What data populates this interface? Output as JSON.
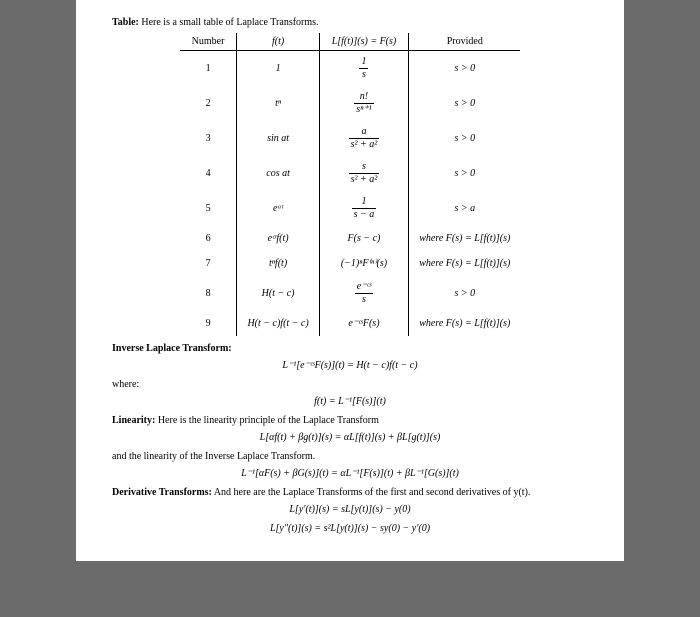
{
  "title": "Table:",
  "title_rest": " Here is a small table of Laplace Transforms.",
  "headers": {
    "num": "Number",
    "ft": "f(t)",
    "Fs": "L[f(t)](s) = F(s)",
    "prov": "Provided"
  },
  "rows": [
    {
      "n": "1",
      "ft": "1",
      "Fs_num": "1",
      "Fs_den": "s",
      "prov": "s > 0",
      "frac": true
    },
    {
      "n": "2",
      "ft": "tⁿ",
      "Fs_num": "n!",
      "Fs_den": "sⁿ⁺¹",
      "prov": "s > 0",
      "frac": true
    },
    {
      "n": "3",
      "ft": "sin at",
      "Fs_num": "a",
      "Fs_den": "s² + a²",
      "prov": "s > 0",
      "frac": true
    },
    {
      "n": "4",
      "ft": "cos at",
      "Fs_num": "s",
      "Fs_den": "s² + a²",
      "prov": "s > 0",
      "frac": true
    },
    {
      "n": "5",
      "ft": "eᵃᵗ",
      "Fs_num": "1",
      "Fs_den": "s − a",
      "prov": "s > a",
      "frac": true
    },
    {
      "n": "6",
      "ft": "eᶜᵗf(t)",
      "Fs": "F(s − c)",
      "prov": "where F(s) = L[f(t)](s)",
      "frac": false
    },
    {
      "n": "7",
      "ft": "tⁿf(t)",
      "Fs": "(−1)ⁿF⁽ⁿ⁾(s)",
      "prov": "where F(s) = L[f(t)](s)",
      "frac": false
    },
    {
      "n": "8",
      "ft": "H(t − c)",
      "Fs_num": "e⁻ᶜˢ",
      "Fs_den": "s",
      "prov": "s > 0",
      "frac": true
    },
    {
      "n": "9",
      "ft": "H(t − c)f(t − c)",
      "Fs": "e⁻ᶜˢF(s)",
      "prov": "where F(s) = L[f(t)](s)",
      "frac": false
    }
  ],
  "inv_h": "Inverse Laplace Transform:",
  "eq_inv": "L⁻¹[e⁻ᶜˢF(s)](t) = H(t − c)f(t − c)",
  "where": "where:",
  "eq_where": "f(t) = L⁻¹[F(s)](t)",
  "lin_h": "Linearity:",
  "lin_rest": " Here is the linearity principle of the Laplace Transform",
  "eq_lin1": "L[αf(t) + βg(t)](s) = αL[f(t)](s) + βL[g(t)](s)",
  "lin2": "and the linearity of the Inverse Laplace Transform.",
  "eq_lin2": "L⁻¹[αF(s) + βG(s)](t) = αL⁻¹[F(s)](t) + βL⁻¹[G(s)](t)",
  "deriv_h": "Derivative Transforms:",
  "deriv_rest": " And here are the Laplace Transforms of the first and second derivatives of y(t).",
  "eq_d1": "L[y′(t)](s) = sL[y(t)](s) − y(0)",
  "eq_d2": "L[y″(t)](s) = s²L[y(t)](s) − sy(0) − y′(0)"
}
